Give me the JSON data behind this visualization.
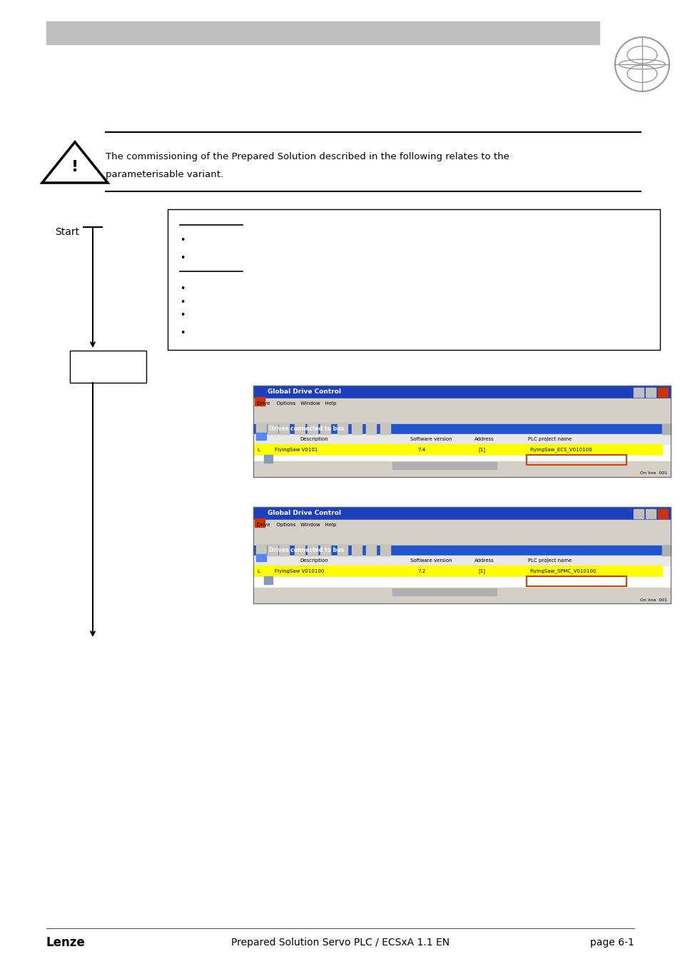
{
  "page_bg": "#ffffff",
  "header_bar_color": "#bfbfbf",
  "globe_color": "#cccccc",
  "warning_text_line1": "The commissioning of the Prepared Solution described in the following relates to the",
  "warning_text_line2": "parameterisable variant.",
  "start_label": "Start",
  "footer_left": "Lenze",
  "footer_center": "Prepared Solution Servo PLC / ECSxA 1.1 EN",
  "footer_right": "page 6-1",
  "sc1_desc": "FlyingSaw V0101",
  "sc1_swver": "7.4",
  "sc1_addr": "[1]",
  "sc1_plc": "FlyingSaw_ECS_V010100",
  "sc2_desc": "FlyingSaw V010100",
  "sc2_swver": "7.2",
  "sc2_addr": "[1]",
  "sc2_plc": "FlyingSaw_SPMC_V010100"
}
